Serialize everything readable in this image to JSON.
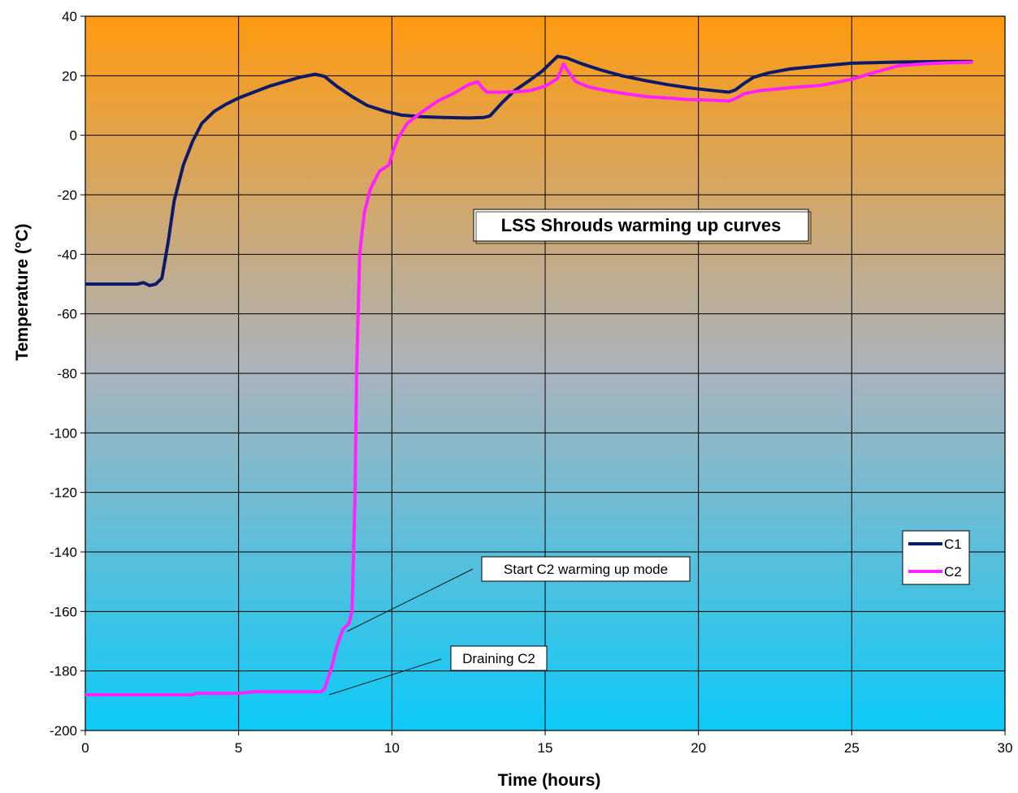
{
  "chart_data": {
    "type": "line",
    "title": "LSS Shrouds warming up curves",
    "xlabel": "Time (hours)",
    "ylabel": "Temperature (°C)",
    "xlim": [
      0,
      30
    ],
    "ylim": [
      -200,
      40
    ],
    "xticks": [
      "0",
      "5",
      "10",
      "15",
      "20",
      "25",
      "30"
    ],
    "yticks": [
      "40",
      "20",
      "0",
      "-20",
      "-40",
      "-60",
      "-80",
      "-100",
      "-120",
      "-140",
      "-160",
      "-180",
      "-200"
    ],
    "grid": true,
    "legend_position": "right",
    "background": {
      "top": "#ff9a10",
      "bottom": "#0ccaf8"
    },
    "series": [
      {
        "name": "C1",
        "color": "#0d1a6a",
        "x": [
          0,
          1.0,
          1.7,
          1.9,
          2.1,
          2.3,
          2.5,
          2.7,
          2.9,
          3.2,
          3.5,
          3.8,
          4.2,
          4.6,
          5.0,
          5.5,
          6.0,
          6.5,
          7.0,
          7.5,
          7.8,
          8.2,
          8.7,
          9.2,
          9.8,
          10.3,
          11.0,
          11.7,
          12.5,
          13.0,
          13.2,
          13.6,
          14.0,
          14.5,
          14.9,
          15.2,
          15.4,
          15.7,
          16.2,
          16.8,
          17.5,
          18.2,
          19.0,
          19.8,
          20.5,
          21.0,
          21.2,
          21.5,
          21.8,
          22.3,
          23.0,
          24.0,
          25.0,
          26.5,
          28.0,
          28.9
        ],
        "y": [
          -50,
          -50,
          -50,
          -49.5,
          -50.5,
          -50,
          -48,
          -36,
          -22,
          -10,
          -2,
          4,
          8,
          10.5,
          12.5,
          14.5,
          16.5,
          18,
          19.5,
          20.5,
          19.8,
          16.5,
          13,
          10,
          8,
          6.8,
          6.2,
          6,
          5.8,
          6,
          6.5,
          11,
          15,
          18.5,
          21.5,
          24.5,
          26.5,
          26,
          24,
          22,
          20,
          18.5,
          17,
          15.8,
          15,
          14.5,
          15.2,
          17.5,
          19.5,
          21,
          22.3,
          23.3,
          24.2,
          24.6,
          24.8,
          24.8
        ]
      },
      {
        "name": "C2",
        "color": "#ff22ff",
        "x": [
          0,
          2.0,
          3.5,
          3.6,
          5.0,
          5.5,
          6.0,
          7.0,
          7.7,
          7.8,
          8.0,
          8.2,
          8.4,
          8.6,
          8.7,
          8.8,
          8.85,
          8.95,
          9.1,
          9.3,
          9.6,
          9.9,
          10.05,
          10.2,
          10.5,
          11.0,
          11.5,
          12.0,
          12.5,
          12.8,
          12.95,
          13.1,
          13.5,
          14.0,
          14.5,
          15.0,
          15.4,
          15.6,
          15.75,
          16.0,
          16.4,
          17.0,
          17.6,
          18.3,
          19.0,
          19.7,
          20.4,
          21.0,
          21.2,
          21.5,
          22.0,
          23.0,
          24.0,
          25.0,
          25.8,
          26.5,
          27.3,
          28.0,
          28.9
        ],
        "y": [
          -188,
          -188,
          -188,
          -187.5,
          -187.5,
          -187,
          -187,
          -187,
          -187,
          -186,
          -180,
          -172,
          -166,
          -164,
          -160,
          -120,
          -80,
          -40,
          -26,
          -18,
          -12,
          -10,
          -5,
          -1,
          4,
          8,
          11.5,
          14,
          17,
          18,
          16,
          14.5,
          14.5,
          14.6,
          15,
          16.5,
          19,
          24,
          21.5,
          18,
          16.3,
          15,
          14,
          13,
          12.5,
          12,
          11.8,
          11.5,
          12.3,
          14,
          15,
          16,
          16.8,
          18.8,
          21.3,
          23.3,
          24,
          24.3,
          24.5
        ]
      }
    ],
    "annotations": [
      {
        "text": "Start C2 warming up mode",
        "x": 8.6,
        "y": -165
      },
      {
        "text": "Draining C2",
        "x": 7.8,
        "y": -187
      }
    ]
  }
}
